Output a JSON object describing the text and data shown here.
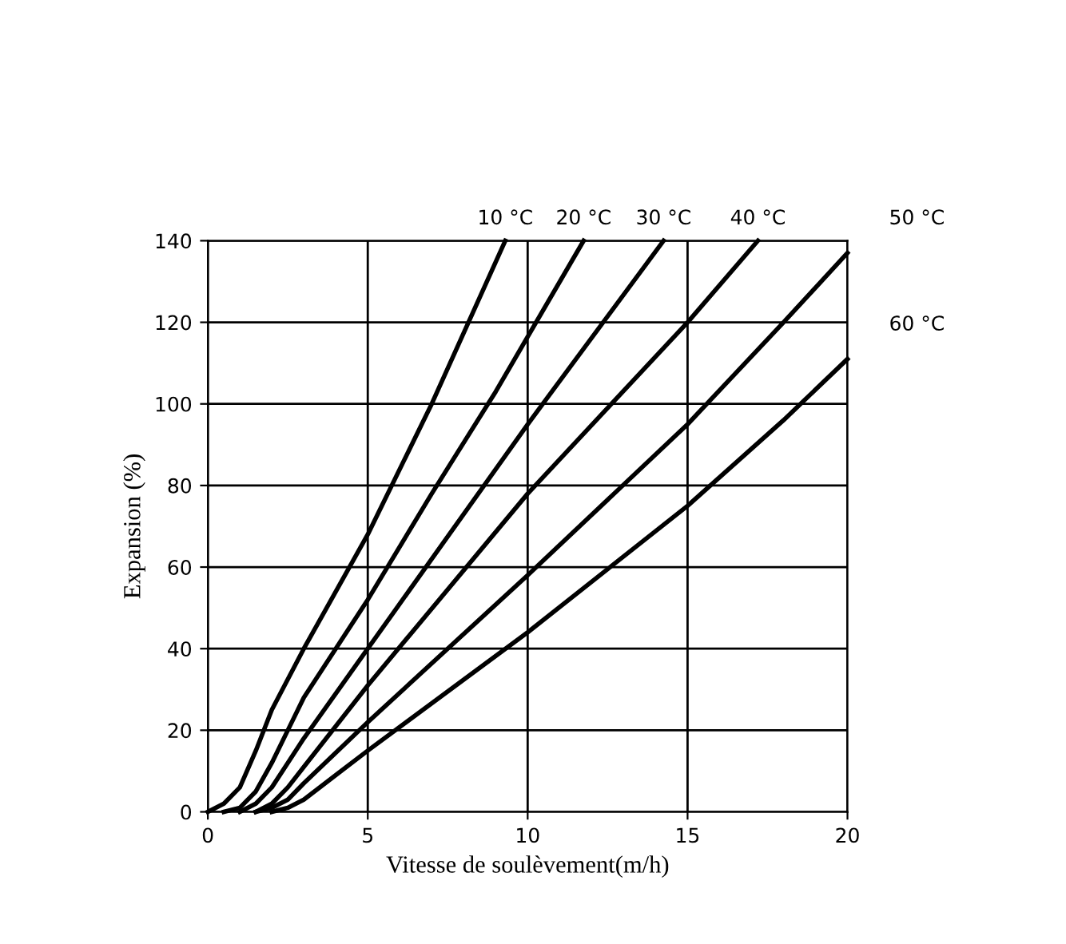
{
  "chart_data": {
    "type": "line",
    "xlabel": "Vitesse de soulèvement(m/h)",
    "ylabel": "Expansion (%)",
    "xlim": [
      0,
      20
    ],
    "ylim": [
      0,
      140
    ],
    "xticks": [
      0,
      5,
      10,
      15,
      20
    ],
    "yticks": [
      0,
      20,
      40,
      60,
      80,
      100,
      120,
      140
    ],
    "grid": true,
    "legend": false,
    "marker": "none",
    "line_style": "solid",
    "series": [
      {
        "name": "10 °C",
        "color": "#000000",
        "x": [
          0,
          0.5,
          1,
          1.5,
          2,
          3,
          5,
          7,
          9.3
        ],
        "values": [
          0,
          2,
          6,
          15,
          25,
          40,
          68,
          100,
          140
        ]
      },
      {
        "name": "20 °C",
        "color": "#000000",
        "x": [
          0.5,
          1,
          1.5,
          2,
          2.5,
          3,
          5,
          7,
          9,
          11.75
        ],
        "values": [
          0,
          1,
          5,
          12,
          20,
          28,
          52,
          78,
          103,
          140
        ]
      },
      {
        "name": "30 °C",
        "color": "#000000",
        "x": [
          1,
          1.5,
          2,
          2.5,
          3,
          5,
          7,
          10,
          14.25
        ],
        "values": [
          0,
          2,
          6,
          12,
          18,
          40,
          62,
          95,
          140
        ]
      },
      {
        "name": "40 °C",
        "color": "#000000",
        "x": [
          1.5,
          2,
          2.5,
          3,
          5,
          10,
          15,
          17.2
        ],
        "values": [
          0,
          2,
          6,
          11,
          31,
          78,
          120,
          140
        ]
      },
      {
        "name": "50 °C",
        "color": "#000000",
        "x": [
          1.5,
          2,
          2.5,
          3,
          5,
          10,
          15,
          18,
          20
        ],
        "values": [
          0,
          1,
          3,
          7,
          22,
          58,
          95,
          120,
          137
        ]
      },
      {
        "name": "60 °C",
        "color": "#000000",
        "x": [
          2,
          2.5,
          3,
          4,
          5,
          10,
          15,
          18,
          20
        ],
        "values": [
          0,
          1,
          3,
          9,
          15,
          44,
          75,
          96,
          111
        ]
      }
    ]
  }
}
